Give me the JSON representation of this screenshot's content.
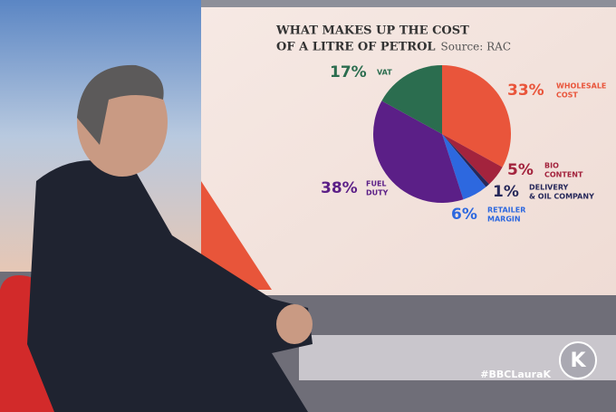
{
  "chart_data": {
    "type": "pie",
    "title": [
      "WHAT MAKES UP THE COST",
      "OF A LITRE OF PETROL"
    ],
    "source": "Source: RAC",
    "categories": [
      [
        "WHOLESALE",
        "COST"
      ],
      [
        "BIO",
        "CONTENT"
      ],
      [
        "DELIVERY",
        "& OIL COMPANY"
      ],
      [
        "RETAILER",
        "MARGIN"
      ],
      [
        "FUEL",
        "DUTY"
      ],
      [
        "VAT"
      ]
    ],
    "values": [
      33,
      5,
      1,
      6,
      38,
      17
    ],
    "value_labels": [
      "33%",
      "5%",
      "1%",
      "6%",
      "38%",
      "17%"
    ],
    "colors": [
      "#e9553b",
      "#a3233d",
      "#26285a",
      "#2d68df",
      "#5b1f87",
      "#2b6d4f"
    ]
  },
  "overlay": {
    "hashtag": "#BBCLauraK",
    "logo": "K"
  }
}
